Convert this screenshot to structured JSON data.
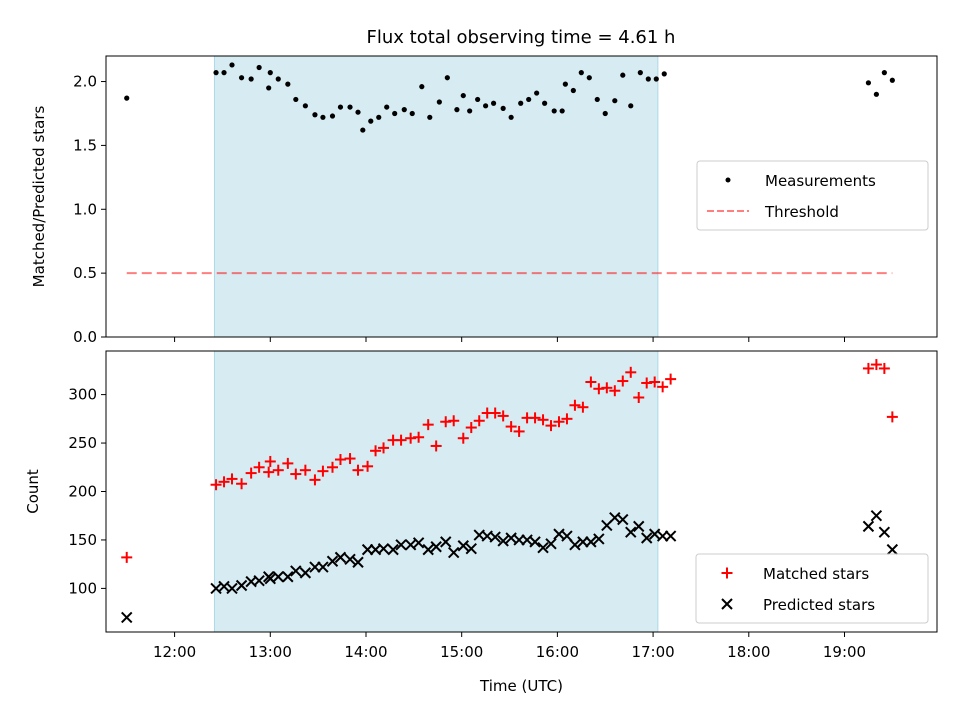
{
  "chart_data": {
    "title": "Flux total observing time = 4.61 h",
    "xlabel": "Time (UTC)",
    "x_ticks": [
      "12:00",
      "13:00",
      "14:00",
      "15:00",
      "16:00",
      "17:00",
      "18:00",
      "19:00"
    ],
    "x_range": [
      "11:17",
      "19:58"
    ],
    "shaded_interval": [
      "12:25",
      "17:03"
    ],
    "colors": {
      "shade": "#add8e6",
      "measurement": "#000000",
      "threshold": "#ff0000",
      "matched": "#ff0000",
      "predicted": "#000000"
    },
    "panels": [
      {
        "type": "scatter",
        "ylabel": "Matched/Predicted stars",
        "ylim": [
          0,
          2.2
        ],
        "y_ticks": [
          "0.0",
          "0.5",
          "1.0",
          "1.5",
          "2.0"
        ],
        "legend_position": "center-right",
        "series": [
          {
            "name": "Measurements",
            "marker": "dot",
            "points": [
              [
                "11:30",
                1.87
              ],
              [
                "12:26",
                2.07
              ],
              [
                "12:31",
                2.07
              ],
              [
                "12:36",
                2.13
              ],
              [
                "12:42",
                2.03
              ],
              [
                "12:48",
                2.02
              ],
              [
                "12:53",
                2.11
              ],
              [
                "12:59",
                1.95
              ],
              [
                "13:00",
                2.07
              ],
              [
                "13:05",
                2.02
              ],
              [
                "13:11",
                1.98
              ],
              [
                "13:16",
                1.86
              ],
              [
                "13:22",
                1.81
              ],
              [
                "13:28",
                1.74
              ],
              [
                "13:33",
                1.72
              ],
              [
                "13:39",
                1.73
              ],
              [
                "13:44",
                1.8
              ],
              [
                "13:50",
                1.8
              ],
              [
                "13:55",
                1.76
              ],
              [
                "13:58",
                1.62
              ],
              [
                "14:03",
                1.69
              ],
              [
                "14:08",
                1.72
              ],
              [
                "14:13",
                1.8
              ],
              [
                "14:18",
                1.75
              ],
              [
                "14:24",
                1.78
              ],
              [
                "14:29",
                1.75
              ],
              [
                "14:35",
                1.96
              ],
              [
                "14:40",
                1.72
              ],
              [
                "14:46",
                1.84
              ],
              [
                "14:51",
                2.03
              ],
              [
                "14:57",
                1.78
              ],
              [
                "15:01",
                1.89
              ],
              [
                "15:05",
                1.77
              ],
              [
                "15:10",
                1.86
              ],
              [
                "15:15",
                1.81
              ],
              [
                "15:20",
                1.83
              ],
              [
                "15:26",
                1.79
              ],
              [
                "15:31",
                1.72
              ],
              [
                "15:37",
                1.83
              ],
              [
                "15:42",
                1.86
              ],
              [
                "15:47",
                1.91
              ],
              [
                "15:52",
                1.83
              ],
              [
                "15:58",
                1.77
              ],
              [
                "16:03",
                1.77
              ],
              [
                "16:05",
                1.98
              ],
              [
                "16:10",
                1.93
              ],
              [
                "16:15",
                2.07
              ],
              [
                "16:20",
                2.03
              ],
              [
                "16:25",
                1.86
              ],
              [
                "16:30",
                1.75
              ],
              [
                "16:36",
                1.85
              ],
              [
                "16:41",
                2.05
              ],
              [
                "16:46",
                1.81
              ],
              [
                "16:52",
                2.07
              ],
              [
                "16:57",
                2.02
              ],
              [
                "17:02",
                2.02
              ],
              [
                "17:07",
                2.06
              ],
              [
                "19:15",
                1.99
              ],
              [
                "19:20",
                1.9
              ],
              [
                "19:25",
                2.07
              ],
              [
                "19:30",
                2.01
              ]
            ]
          },
          {
            "name": "Threshold",
            "marker": "dashed-line",
            "points": [
              [
                "11:30",
                0.5
              ],
              [
                "19:30",
                0.5
              ]
            ]
          }
        ]
      },
      {
        "type": "scatter",
        "ylabel": "Count",
        "ylim": [
          55,
          345
        ],
        "y_ticks": [
          "100",
          "150",
          "200",
          "250",
          "300"
        ],
        "legend_position": "bottom-right",
        "series": [
          {
            "name": "Matched stars",
            "marker": "plus",
            "points": [
              [
                "11:30",
                132
              ],
              [
                "12:26",
                207
              ],
              [
                "12:31",
                210
              ],
              [
                "12:36",
                213
              ],
              [
                "12:42",
                208
              ],
              [
                "12:48",
                219
              ],
              [
                "12:53",
                225
              ],
              [
                "12:59",
                220
              ],
              [
                "13:00",
                231
              ],
              [
                "13:05",
                222
              ],
              [
                "13:11",
                229
              ],
              [
                "13:16",
                218
              ],
              [
                "13:22",
                222
              ],
              [
                "13:28",
                212
              ],
              [
                "13:33",
                221
              ],
              [
                "13:39",
                225
              ],
              [
                "13:44",
                233
              ],
              [
                "13:50",
                234
              ],
              [
                "13:55",
                222
              ],
              [
                "14:01",
                226
              ],
              [
                "14:06",
                242
              ],
              [
                "14:11",
                245
              ],
              [
                "14:17",
                253
              ],
              [
                "14:22",
                253
              ],
              [
                "14:28",
                255
              ],
              [
                "14:33",
                256
              ],
              [
                "14:39",
                269
              ],
              [
                "14:44",
                247
              ],
              [
                "14:50",
                272
              ],
              [
                "14:55",
                273
              ],
              [
                "15:01",
                255
              ],
              [
                "15:06",
                266
              ],
              [
                "15:11",
                273
              ],
              [
                "15:16",
                281
              ],
              [
                "15:21",
                281
              ],
              [
                "15:26",
                278
              ],
              [
                "15:31",
                267
              ],
              [
                "15:36",
                262
              ],
              [
                "15:41",
                276
              ],
              [
                "15:46",
                276
              ],
              [
                "15:51",
                274
              ],
              [
                "15:56",
                268
              ],
              [
                "16:01",
                272
              ],
              [
                "16:06",
                275
              ],
              [
                "16:11",
                289
              ],
              [
                "16:16",
                287
              ],
              [
                "16:21",
                313
              ],
              [
                "16:26",
                306
              ],
              [
                "16:31",
                307
              ],
              [
                "16:36",
                304
              ],
              [
                "16:41",
                314
              ],
              [
                "16:46",
                323
              ],
              [
                "16:51",
                297
              ],
              [
                "16:56",
                312
              ],
              [
                "17:01",
                313
              ],
              [
                "17:06",
                308
              ],
              [
                "17:11",
                316
              ],
              [
                "19:15",
                327
              ],
              [
                "19:20",
                331
              ],
              [
                "19:25",
                327
              ],
              [
                "19:30",
                277
              ]
            ]
          },
          {
            "name": "Predicted stars",
            "marker": "x",
            "points": [
              [
                "11:30",
                70
              ],
              [
                "12:26",
                100
              ],
              [
                "12:31",
                102
              ],
              [
                "12:36",
                100
              ],
              [
                "12:42",
                103
              ],
              [
                "12:48",
                107
              ],
              [
                "12:53",
                108
              ],
              [
                "12:59",
                112
              ],
              [
                "13:00",
                110
              ],
              [
                "13:05",
                112
              ],
              [
                "13:11",
                112
              ],
              [
                "13:16",
                118
              ],
              [
                "13:22",
                116
              ],
              [
                "13:28",
                122
              ],
              [
                "13:33",
                122
              ],
              [
                "13:39",
                128
              ],
              [
                "13:44",
                132
              ],
              [
                "13:50",
                130
              ],
              [
                "13:55",
                127
              ],
              [
                "14:01",
                140
              ],
              [
                "14:06",
                140
              ],
              [
                "14:11",
                141
              ],
              [
                "14:17",
                140
              ],
              [
                "14:22",
                145
              ],
              [
                "14:28",
                145
              ],
              [
                "14:33",
                147
              ],
              [
                "14:39",
                140
              ],
              [
                "14:44",
                143
              ],
              [
                "14:50",
                148
              ],
              [
                "14:55",
                137
              ],
              [
                "15:01",
                144
              ],
              [
                "15:06",
                141
              ],
              [
                "15:11",
                155
              ],
              [
                "15:16",
                154
              ],
              [
                "15:21",
                153
              ],
              [
                "15:26",
                149
              ],
              [
                "15:31",
                152
              ],
              [
                "15:36",
                150
              ],
              [
                "15:41",
                150
              ],
              [
                "15:46",
                148
              ],
              [
                "15:51",
                142
              ],
              [
                "15:56",
                146
              ],
              [
                "16:01",
                156
              ],
              [
                "16:06",
                154
              ],
              [
                "16:11",
                145
              ],
              [
                "16:16",
                148
              ],
              [
                "16:21",
                148
              ],
              [
                "16:26",
                151
              ],
              [
                "16:31",
                165
              ],
              [
                "16:36",
                173
              ],
              [
                "16:41",
                171
              ],
              [
                "16:46",
                158
              ],
              [
                "16:51",
                164
              ],
              [
                "16:56",
                152
              ],
              [
                "17:01",
                156
              ],
              [
                "17:06",
                154
              ],
              [
                "17:11",
                154
              ],
              [
                "19:15",
                164
              ],
              [
                "19:20",
                175
              ],
              [
                "19:25",
                158
              ],
              [
                "19:30",
                140
              ]
            ]
          }
        ]
      }
    ]
  }
}
